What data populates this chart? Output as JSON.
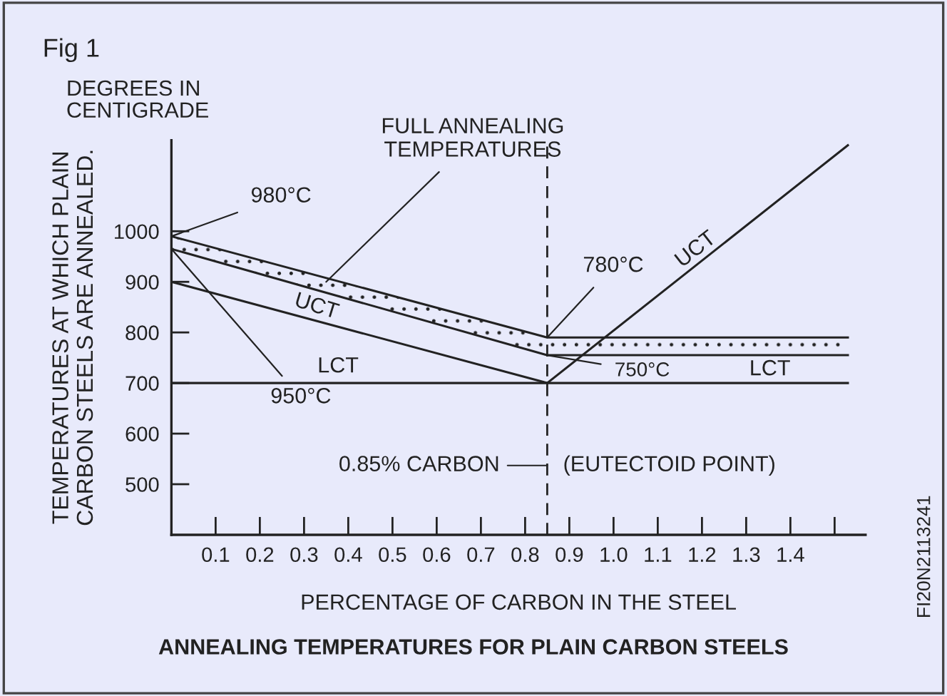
{
  "chart_data": {
    "type": "line",
    "title": "ANNEALING TEMPERATURES FOR PLAIN CARBON STEELS",
    "xlabel": "PERCENTAGE OF CARBON IN THE STEEL",
    "ylabel": "TEMPERATURES AT WHICH PLAIN\nCARBON STEELS ARE ANNEALED.",
    "series": [
      {
        "x": [
          0,
          0.85,
          1.53
        ],
        "values": [
          990,
          790,
          790
        ],
        "lower": [
          965,
          755,
          755
        ],
        "upper": [
          990,
          790,
          790
        ],
        "color": "#222222"
      },
      {
        "x": [
          0,
          0.85,
          1.53
        ],
        "values": [
          965,
          755,
          755
        ],
        "color": "#222222"
      },
      {
        "x": [
          0,
          0.85
        ],
        "values": [
          900,
          700
        ],
        "color": "#222222"
      },
      {
        "x": [
          0,
          1.53
        ],
        "values": [
          700,
          700
        ],
        "color": "#222222"
      },
      {
        "x": [
          0.85,
          1.53
        ],
        "values": [
          700,
          1170
        ],
        "color": "#222222"
      }
    ],
    "xlim": [
      0,
      1.57
    ],
    "xticks": [
      0.1,
      0.2,
      0.3,
      0.4,
      0.5,
      0.6,
      0.7,
      0.8,
      0.9,
      {
        "value": 1.0,
        "label": "1.0"
      },
      1.1,
      1.2,
      1.3,
      1.4,
      {
        "value": 1.5,
        "label": null
      }
    ],
    "ylim": [
      400,
      1180
    ],
    "yticks": [
      500,
      600,
      700,
      800,
      900,
      1000
    ],
    "grid": false,
    "ref_lines": [
      {
        "axis": "x",
        "value": 0.85,
        "label": "0.85% CARBON",
        "line_style": "dashed",
        "color": "#222222"
      }
    ],
    "annotations": [
      "Fig 1",
      "DEGREES IN\nCENTIGRADE",
      "FI20N2113241",
      {
        "text": "980°C",
        "x": 0,
        "y": 990
      },
      {
        "text": "950°C",
        "x": 0,
        "y": 965
      },
      {
        "text": "780°C",
        "x": 0.85,
        "y": 790
      },
      {
        "text": "750°C",
        "x": 0.85,
        "y": 755
      },
      {
        "text": "FULL ANNEALING\nTEMPERATURES",
        "x": 0.35,
        "y": 900
      },
      "UCT",
      "LCT",
      "LCT",
      "UCT",
      {
        "text": "(EUTECTOID POINT)",
        "x": 0.85,
        "y": 537
      }
    ]
  }
}
